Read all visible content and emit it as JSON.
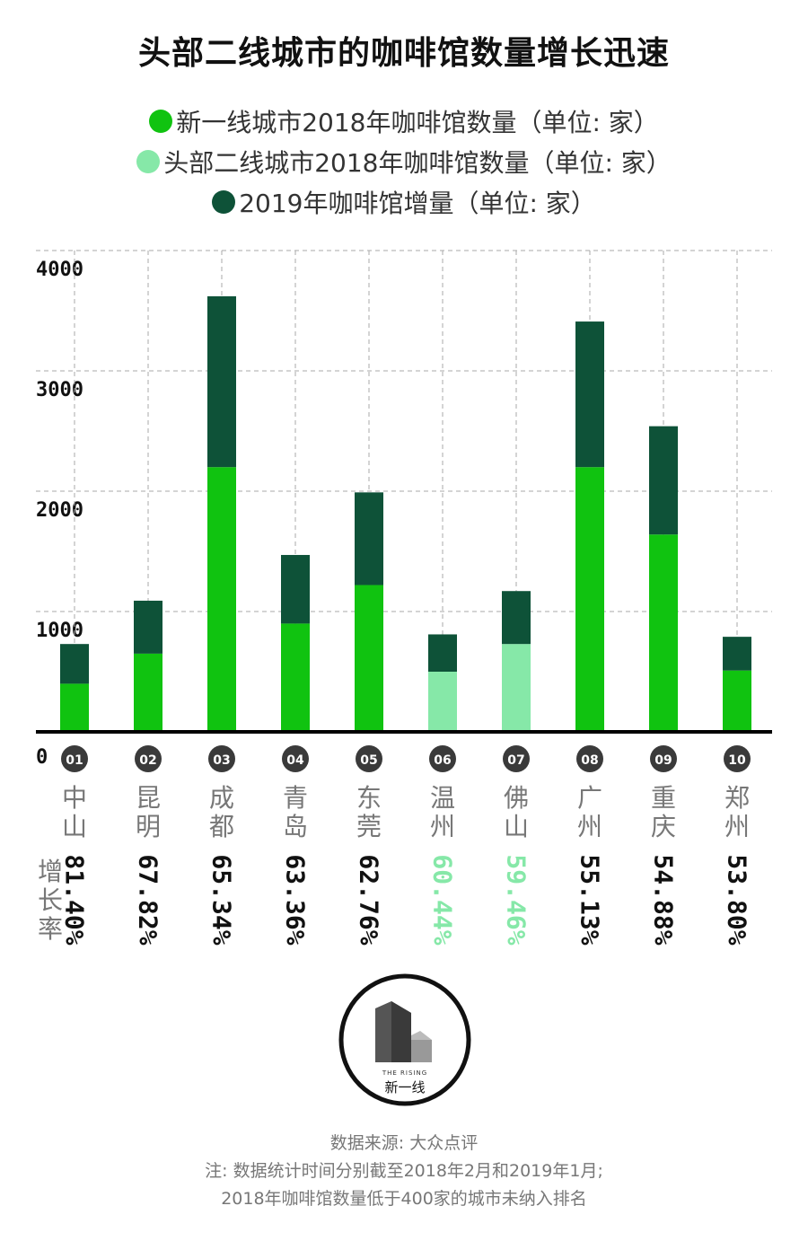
{
  "title": "头部二线城市的咖啡馆数量增长迅速",
  "legend": [
    {
      "label": "新一线城市2018年咖啡馆数量（单位: 家）",
      "color": "#10c310"
    },
    {
      "label": "头部二线城市2018年咖啡馆数量（单位: 家）",
      "color": "#86e8a8"
    },
    {
      "label": "2019年咖啡馆增量（单位: 家）",
      "color": "#0e5238"
    }
  ],
  "growth_label": "增长率",
  "colors": {
    "new_tier1": "#10c310",
    "tier2": "#86e8a8",
    "increase": "#0e5238",
    "badge": "#3a3a3a"
  },
  "chart_data": {
    "type": "bar",
    "stacked": true,
    "categories": [
      "中山",
      "昆明",
      "成都",
      "青岛",
      "东莞",
      "温州",
      "佛山",
      "广州",
      "重庆",
      "郑州"
    ],
    "ranks": [
      "01",
      "02",
      "03",
      "04",
      "05",
      "06",
      "07",
      "08",
      "09",
      "10"
    ],
    "series": [
      {
        "key": "base_2018",
        "values": [
          400,
          650,
          2200,
          900,
          1220,
          500,
          730,
          2200,
          1640,
          510
        ]
      },
      {
        "key": "increase_2019",
        "values": [
          330,
          440,
          1420,
          570,
          770,
          310,
          440,
          1210,
          900,
          280
        ]
      }
    ],
    "base_tier": [
      "new",
      "new",
      "new",
      "new",
      "new",
      "tier2",
      "tier2",
      "new",
      "new",
      "new"
    ],
    "growth_rates": [
      "81.40%",
      "67.82%",
      "65.34%",
      "63.36%",
      "62.76%",
      "60.44%",
      "59.46%",
      "55.13%",
      "54.88%",
      "53.80%"
    ],
    "yticks": [
      "0",
      "1000",
      "2000",
      "3000",
      "4000"
    ],
    "ytick_values": [
      0,
      1000,
      2000,
      3000,
      4000
    ],
    "ylim": [
      0,
      4000
    ],
    "grid": true
  },
  "logo": {
    "small_text": "THE RISING",
    "text": "新一线"
  },
  "footer": {
    "source": "数据来源: 大众点评",
    "note1": "注: 数据统计时间分别截至2018年2月和2019年1月;",
    "note2": "2018年咖啡馆数量低于400家的城市未纳入排名"
  }
}
